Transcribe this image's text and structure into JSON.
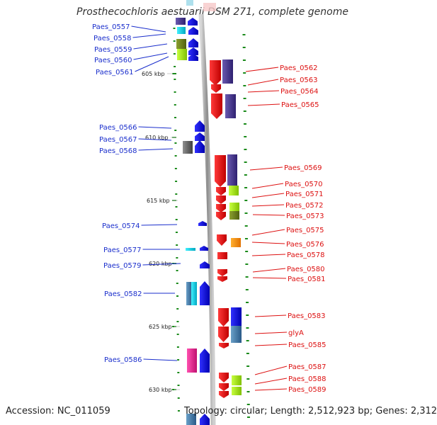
{
  "title": "Prosthecochloris aestuarii DSM 271, complete genome",
  "footer": {
    "accession": "Accession: NC_011059",
    "summary": "Topology: circular; Length: 2,512,923 bp; Genes: 2,312"
  },
  "scale_labels": [
    "605 kbp",
    "610 kbp",
    "615 kbp",
    "620 kbp",
    "625 kbp",
    "630 kbp"
  ],
  "left_labels": [
    "Paes_0557",
    "Paes_0558",
    "Paes_0559",
    "Paes_0560",
    "Paes_0561",
    "Paes_0566",
    "Paes_0567",
    "Paes_0568",
    "Paes_0574",
    "Paes_0577",
    "Paes_0579",
    "Paes_0582",
    "Paes_0586"
  ],
  "right_labels": [
    "Paes_0562",
    "Paes_0563",
    "Paes_0564",
    "Paes_0565",
    "Paes_0569",
    "Paes_0570",
    "Paes_0571",
    "Paes_0572",
    "Paes_0573",
    "Paes_0575",
    "Paes_0576",
    "Paes_0578",
    "Paes_0580",
    "Paes_0581",
    "Paes_0583",
    "glyA",
    "Paes_0585",
    "Paes_0587",
    "Paes_0588",
    "Paes_0589"
  ],
  "colors": {
    "left_label": "#1a2ecc",
    "right_label": "#dd1111",
    "forward_gene": "#1616e0",
    "reverse_gene": "#e81010",
    "backbone": "#9a9a9a",
    "tick": "#1a8a1a"
  }
}
